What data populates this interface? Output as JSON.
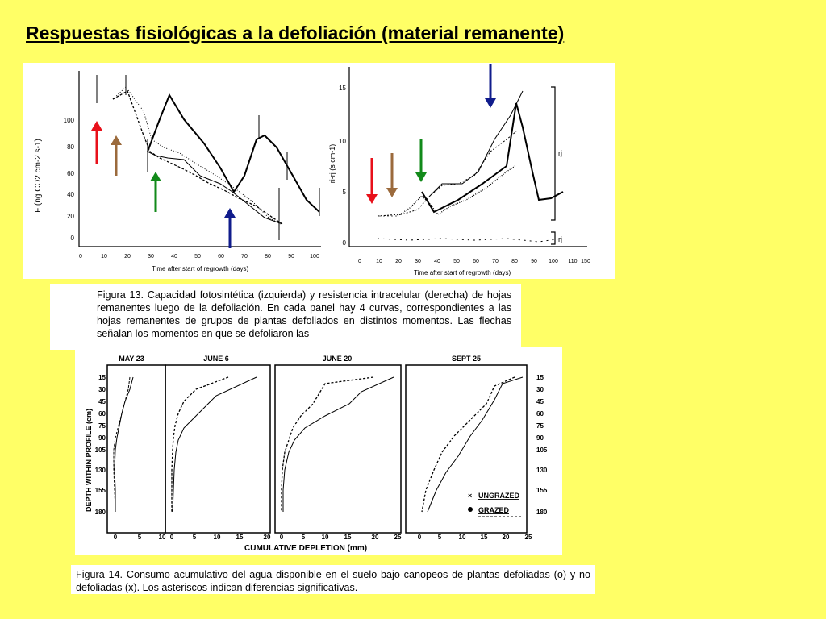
{
  "title": "Respuestas fisiológicas a la defoliación (material remanente)",
  "fig13": {
    "left_panel": {
      "ylabel": "F (ng CO2 cm-2 s-1)",
      "xlabel": "Time after start of regrowth (days)",
      "y_ticks": [
        "100",
        "80",
        "60",
        "40",
        "20",
        "0"
      ],
      "x_ticks": [
        "0",
        "10",
        "20",
        "30",
        "40",
        "50",
        "60",
        "70",
        "80",
        "90",
        "100"
      ]
    },
    "right_panel": {
      "ylabel": "ri-rj (s cm-1)",
      "xlabel": "Time after start of regrowth (days)",
      "side_labels": [
        "rj",
        "rj"
      ],
      "y_ticks": [
        "15",
        "10",
        "5",
        "0"
      ],
      "x_ticks": [
        "0",
        "10",
        "20",
        "30",
        "40",
        "50",
        "60",
        "70",
        "80",
        "90",
        "100",
        "110"
      ],
      "x_end": "150"
    },
    "arrow_colors": {
      "red": "#e8101a",
      "brown": "#9b6a3c",
      "green": "#128a1a",
      "blue": "#101c8c"
    }
  },
  "caption13": "Figura 13. Capacidad fotosintética (izquierda) y resistencia intracelular (derecha) de hojas remanentes luego de la defoliación. En cada panel hay 4 curvas, correspondientes a las hojas remanentes de grupos de plantas defoliados en distintos momentos. Las flechas señalan los momentos en que se defoliaron las",
  "fig14": {
    "panels": [
      "MAY 23",
      "JUNE 6",
      "JUNE 20",
      "SEPT 25"
    ],
    "ylabel": "DEPTH WITHIN PROFILE (cm)",
    "xlabel": "CUMULATIVE DEPLETION (mm)",
    "depths": [
      "15",
      "30",
      "45",
      "60",
      "75",
      "90",
      "105",
      "130",
      "155",
      "180"
    ],
    "x_ticks_a": [
      "0",
      "5",
      "10"
    ],
    "x_ticks_b": [
      "0",
      "5",
      "10",
      "15",
      "20"
    ],
    "x_ticks_c": [
      "0",
      "5",
      "10",
      "15",
      "20",
      "25"
    ],
    "legend_ungrazed": "UNGRAZED",
    "legend_grazed": "GRAZED"
  },
  "caption14": "Figura 14. Consumo acumulativo del agua disponible en el suelo bajo canopeos de plantas defoliadas (o) y no defoliadas (x). Los asteriscos indican diferencias significativas."
}
